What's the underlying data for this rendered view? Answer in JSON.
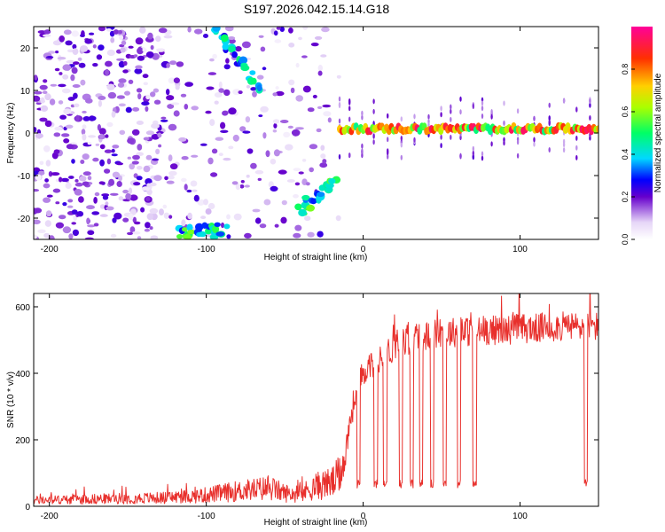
{
  "title": "S197.2026.042.15.14.G18",
  "chart_data": [
    {
      "type": "heatmap",
      "xlabel": "Height of straight line (km)",
      "ylabel": "Frequency (Hz)",
      "xlim": [
        -210,
        150
      ],
      "ylim": [
        -25,
        25
      ],
      "xticks": [
        -200,
        -100,
        0,
        100
      ],
      "yticks": [
        -20,
        -10,
        0,
        10,
        20
      ],
      "colorbar": {
        "label": "Normalized spectral amplitude",
        "range": [
          0,
          1
        ],
        "ticks": [
          0.0,
          0.2,
          0.4,
          0.6,
          0.8
        ]
      },
      "features": [
        {
          "name": "noise",
          "x_range": [
            -210,
            -15
          ],
          "y_range": [
            -25,
            25
          ],
          "amplitude": 0.15
        },
        {
          "name": "ridge-upper",
          "from": [
            -95,
            25
          ],
          "to": [
            -65,
            10
          ],
          "amplitude": 0.3
        },
        {
          "name": "blob-lower-left",
          "from": [
            -118,
            -23
          ],
          "to": [
            -88,
            -23
          ],
          "amplitude": 0.35
        },
        {
          "name": "ridge-lower",
          "from": [
            -40,
            -18
          ],
          "to": [
            -18,
            -12
          ],
          "amplitude": 0.35
        },
        {
          "name": "carrier",
          "x_range": [
            -15,
            150
          ],
          "frequency": 1,
          "amplitude": 0.85
        }
      ]
    },
    {
      "type": "line",
      "xlabel": "Height of straight line (km)",
      "ylabel": "SNR (10 * v/v)",
      "xlim": [
        -210,
        150
      ],
      "ylim": [
        0,
        640
      ],
      "xticks": [
        -200,
        -100,
        0,
        100
      ],
      "yticks": [
        0,
        200,
        400,
        600
      ],
      "series": [
        {
          "name": "SNR",
          "color": "#e8302c",
          "x": [
            -210,
            -190,
            -170,
            -150,
            -130,
            -110,
            -100,
            -90,
            -80,
            -70,
            -60,
            -50,
            -40,
            -35,
            -30,
            -25,
            -20,
            -15,
            -12,
            -10,
            -8,
            -5,
            -2,
            0,
            3,
            6,
            10,
            15,
            20,
            25,
            30,
            40,
            50,
            60,
            70,
            80,
            90,
            100,
            110,
            120,
            130,
            140,
            150
          ],
          "y": [
            18,
            20,
            22,
            24,
            25,
            30,
            34,
            40,
            45,
            50,
            55,
            40,
            35,
            50,
            60,
            65,
            70,
            90,
            140,
            200,
            270,
            330,
            370,
            400,
            420,
            430,
            440,
            460,
            480,
            490,
            500,
            510,
            520,
            525,
            525,
            530,
            530,
            535,
            535,
            540,
            540,
            540,
            540
          ]
        }
      ],
      "dropouts_x": [
        -3,
        8,
        14,
        24,
        31,
        37,
        44,
        52,
        61,
        71,
        142
      ]
    }
  ]
}
